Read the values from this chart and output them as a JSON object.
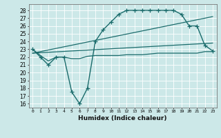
{
  "xlabel": "Humidex (Indice chaleur)",
  "ylabel": "",
  "xlim": [
    -0.5,
    23.5
  ],
  "ylim": [
    15.5,
    28.8
  ],
  "yticks": [
    16,
    17,
    18,
    19,
    20,
    21,
    22,
    23,
    24,
    25,
    26,
    27,
    28
  ],
  "xticks": [
    0,
    1,
    2,
    3,
    4,
    5,
    6,
    7,
    8,
    9,
    10,
    11,
    12,
    13,
    14,
    15,
    16,
    17,
    18,
    19,
    20,
    21,
    22,
    23
  ],
  "bg_color": "#cce8e8",
  "line_color": "#1a6b6b",
  "grid_color": "#b0d0d0",
  "series": [
    {
      "x": [
        0,
        1,
        2,
        3,
        4,
        5,
        6,
        7,
        8,
        9,
        10,
        11,
        12,
        13,
        14,
        15,
        16,
        17,
        18,
        19,
        20,
        21,
        22,
        23
      ],
      "y": [
        23,
        22,
        21,
        22,
        22,
        17.5,
        16,
        18,
        24,
        25.5,
        26.5,
        27.5,
        28,
        28,
        28,
        28,
        28,
        28,
        28,
        27.5,
        26,
        26,
        23.5,
        22.8
      ],
      "marker": "+",
      "markersize": 4,
      "linewidth": 1.0
    },
    {
      "x": [
        0,
        1,
        2,
        3,
        4,
        5,
        6,
        7,
        8,
        9,
        10,
        11,
        12,
        13,
        14,
        15,
        16,
        17,
        18,
        19,
        20,
        21,
        22,
        23
      ],
      "y": [
        23,
        22.2,
        21.5,
        22,
        22,
        21.8,
        21.8,
        22.1,
        22.2,
        22.2,
        22.2,
        22.2,
        22.3,
        22.3,
        22.3,
        22.4,
        22.5,
        22.5,
        22.5,
        22.5,
        22.5,
        22.5,
        22.7,
        22.7
      ],
      "marker": null,
      "markersize": 0,
      "linewidth": 0.9
    },
    {
      "x": [
        0,
        23
      ],
      "y": [
        22.5,
        23.8
      ],
      "marker": null,
      "markersize": 0,
      "linewidth": 0.9
    },
    {
      "x": [
        0,
        23
      ],
      "y": [
        22.5,
        27.2
      ],
      "marker": null,
      "markersize": 0,
      "linewidth": 0.9
    }
  ]
}
